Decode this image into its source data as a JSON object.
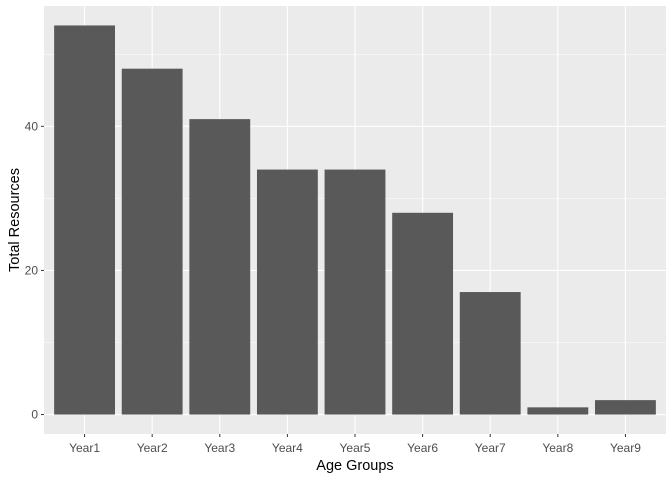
{
  "chart_data": {
    "type": "bar",
    "categories": [
      "Year1",
      "Year2",
      "Year3",
      "Year4",
      "Year5",
      "Year6",
      "Year7",
      "Year8",
      "Year9"
    ],
    "values": [
      54,
      48,
      41,
      34,
      34,
      28,
      17,
      1,
      2
    ],
    "xlabel": "Age Groups",
    "ylabel": "Total Resources",
    "yticks": [
      0,
      20,
      40
    ],
    "ylim": [
      -2.7,
      56.7
    ],
    "grid": true,
    "colors": {
      "panel_background": "#ebebeb",
      "grid_major": "#ffffff",
      "bar_fill": "#595959",
      "tick_text": "#4d4d4d",
      "tick_mark": "#333333"
    }
  }
}
